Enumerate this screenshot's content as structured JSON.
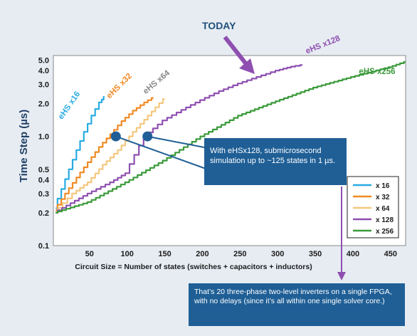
{
  "header_label": "TODAY",
  "callout_1": "With eHSx128, submicrosecond simulation up to ~125 states in 1 µs.",
  "callout_2": "That’s 20 three-phase two-level inverters on a single FPGA, with no delays (since it’s all within one single solver core.)",
  "colors": {
    "background": "#e7ecf3",
    "callout_fill": "#1f5f96",
    "x16": "#29abe2",
    "x32": "#f08a24",
    "x64": "#f5c77e",
    "x128": "#8e4fb0",
    "x256": "#3a9a3a",
    "marker": "#1f5f96"
  },
  "chart_data": {
    "type": "line",
    "xlabel": "Circuit Size = Number of states (switches + capacitors + inductors)",
    "ylabel": "Time Step (µs)",
    "xlim": [
      2,
      470
    ],
    "ylim": [
      0.1,
      5.5
    ],
    "yscale": "log",
    "grid": true,
    "x_ticks": [
      50,
      100,
      150,
      200,
      250,
      300,
      350,
      400,
      450
    ],
    "y_ticks": [
      0.1,
      0.2,
      0.3,
      0.4,
      0.5,
      1.0,
      2.0,
      3.0,
      4.0,
      5.0
    ],
    "y_tick_labels": [
      "0.1",
      "0.2",
      "0.3",
      "0.4",
      "0.5",
      "1.0",
      "2.0",
      "3.0",
      "4.0",
      "5.0"
    ],
    "legend_position": "bottom-right",
    "series": [
      {
        "name": "x 16",
        "curve_label": "eHS x16",
        "color": "#29abe2",
        "x": [
          5,
          15,
          25,
          35,
          45,
          55,
          65,
          70
        ],
        "y": [
          0.22,
          0.33,
          0.5,
          0.75,
          1.1,
          1.55,
          2.05,
          2.3
        ]
      },
      {
        "name": "x 32",
        "curve_label": "eHS x32",
        "color": "#f08a24",
        "x": [
          5,
          20,
          35,
          50,
          65,
          80,
          95,
          110,
          125,
          135
        ],
        "y": [
          0.21,
          0.3,
          0.42,
          0.58,
          0.8,
          1.05,
          1.38,
          1.72,
          2.05,
          2.25
        ]
      },
      {
        "name": "x 64",
        "curve_label": "eHS x64",
        "color": "#f5c77e",
        "x": [
          5,
          30,
          50,
          70,
          90,
          110,
          130,
          150
        ],
        "y": [
          0.2,
          0.3,
          0.38,
          0.55,
          0.75,
          1.1,
          1.55,
          2.2
        ]
      },
      {
        "name": "x 128",
        "curve_label": "eHS x128",
        "color": "#8e4fb0",
        "x": [
          5,
          50,
          80,
          100,
          125,
          150,
          175,
          200,
          225,
          250,
          275,
          300,
          320,
          333
        ],
        "y": [
          0.2,
          0.3,
          0.38,
          0.46,
          1.0,
          1.4,
          1.75,
          2.15,
          2.6,
          3.05,
          3.5,
          4.0,
          4.35,
          4.5
        ]
      },
      {
        "name": "x 256",
        "curve_label": "eHS x256",
        "color": "#3a9a3a",
        "x": [
          5,
          50,
          100,
          150,
          200,
          250,
          300,
          350,
          400,
          450,
          470
        ],
        "y": [
          0.2,
          0.25,
          0.38,
          0.6,
          1.0,
          1.55,
          2.1,
          2.8,
          3.5,
          4.3,
          4.8
        ]
      }
    ],
    "markers": [
      {
        "x": 85,
        "y": 1.0
      },
      {
        "x": 127,
        "y": 1.0
      }
    ]
  }
}
